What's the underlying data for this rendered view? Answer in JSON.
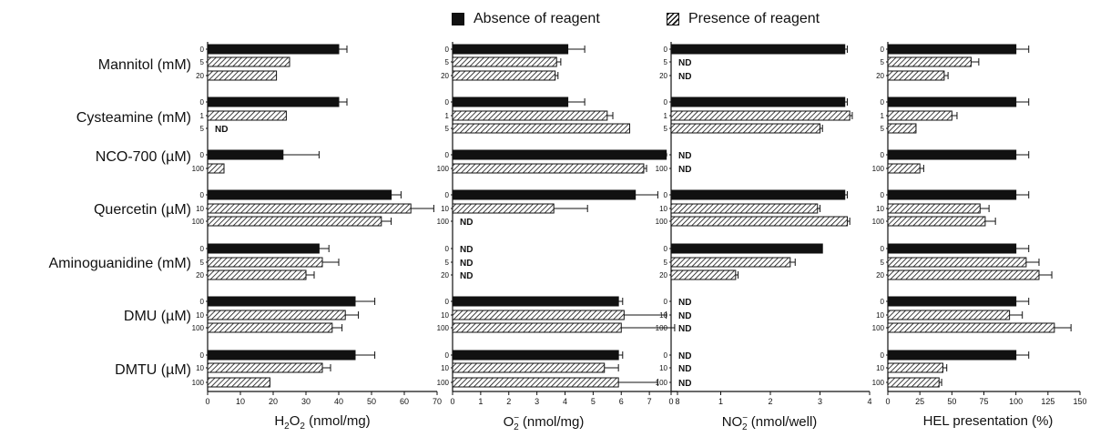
{
  "legend": {
    "absence": "Absence of reagent",
    "presence": "Presence of reagent"
  },
  "colors": {
    "solid": "#111111",
    "hatch": "#111111",
    "background": "#ffffff"
  },
  "nd_label": "ND",
  "panels_meta": [
    {
      "xlabel_main": "H",
      "xlabel_sub": "2",
      "xlabel_mid": "O",
      "xlabel_sub2": "2",
      "xlabel_rest": " (nmol/mg)"
    },
    {
      "xlabel_main": "O",
      "xlabel_sub": "2",
      "xlabel_sup": "−",
      "xlabel_rest": " (nmol/mg)"
    },
    {
      "xlabel_main": "NO",
      "xlabel_sub": "2",
      "xlabel_sup": "−",
      "xlabel_rest": " (nmol/well)"
    },
    {
      "xlabel_main": "HEL presentation (%)"
    }
  ],
  "chart_data": [
    {
      "type": "bar",
      "orientation": "horizontal",
      "xlabel": "H2O2 (nmol/mg)",
      "xlim": [
        0,
        70
      ],
      "ticks": [
        0,
        10,
        20,
        30,
        40,
        50,
        60,
        70
      ],
      "groups": [
        {
          "name": "Mannitol (mM)",
          "rows": [
            {
              "conc": "0",
              "value": 40,
              "err": 2.5
            },
            {
              "conc": "5",
              "value": 25,
              "err": 0
            },
            {
              "conc": "20",
              "value": 21,
              "err": 0
            }
          ]
        },
        {
          "name": "Cysteamine (mM)",
          "rows": [
            {
              "conc": "0",
              "value": 40,
              "err": 2.5
            },
            {
              "conc": "1",
              "value": 24,
              "err": 0
            },
            {
              "conc": "5",
              "value": null,
              "nd": true
            }
          ]
        },
        {
          "name": "NCO-700 (µM)",
          "rows": [
            {
              "conc": "0",
              "value": 23,
              "err": 11
            },
            {
              "conc": "100",
              "value": 5,
              "err": 0
            }
          ]
        },
        {
          "name": "Quercetin (µM)",
          "rows": [
            {
              "conc": "0",
              "value": 56,
              "err": 3
            },
            {
              "conc": "10",
              "value": 62,
              "err": 7
            },
            {
              "conc": "100",
              "value": 53,
              "err": 3
            }
          ]
        },
        {
          "name": "Aminoguanidine (mM)",
          "rows": [
            {
              "conc": "0",
              "value": 34,
              "err": 3
            },
            {
              "conc": "5",
              "value": 35,
              "err": 5
            },
            {
              "conc": "20",
              "value": 30,
              "err": 2.5
            }
          ]
        },
        {
          "name": "DMU (µM)",
          "rows": [
            {
              "conc": "0",
              "value": 45,
              "err": 6
            },
            {
              "conc": "10",
              "value": 42,
              "err": 4
            },
            {
              "conc": "100",
              "value": 38,
              "err": 3
            }
          ]
        },
        {
          "name": "DMTU (µM)",
          "rows": [
            {
              "conc": "0",
              "value": 45,
              "err": 6
            },
            {
              "conc": "10",
              "value": 35,
              "err": 2.5
            },
            {
              "conc": "100",
              "value": 19,
              "err": 0
            }
          ]
        }
      ]
    },
    {
      "type": "bar",
      "orientation": "horizontal",
      "xlabel": "O2− (nmol/mg)",
      "xlim": [
        0,
        8
      ],
      "ticks": [
        0,
        1,
        2,
        3,
        4,
        5,
        6,
        7,
        8
      ],
      "groups": [
        {
          "name": "Mannitol (mM)",
          "rows": [
            {
              "conc": "0",
              "value": 4.1,
              "err": 0.6
            },
            {
              "conc": "5",
              "value": 3.7,
              "err": 0.15
            },
            {
              "conc": "20",
              "value": 3.65,
              "err": 0.1
            }
          ]
        },
        {
          "name": "Cysteamine (mM)",
          "rows": [
            {
              "conc": "0",
              "value": 4.1,
              "err": 0.6
            },
            {
              "conc": "1",
              "value": 5.5,
              "err": 0.2
            },
            {
              "conc": "5",
              "value": 6.3,
              "err": 0
            }
          ]
        },
        {
          "name": "NCO-700 (µM)",
          "rows": [
            {
              "conc": "0",
              "value": 7.6,
              "err": 0
            },
            {
              "conc": "100",
              "value": 6.8,
              "err": 0.1
            }
          ]
        },
        {
          "name": "Quercetin (µM)",
          "rows": [
            {
              "conc": "0",
              "value": 6.5,
              "err": 0.8
            },
            {
              "conc": "10",
              "value": 3.6,
              "err": 1.2
            },
            {
              "conc": "100",
              "value": null,
              "nd": true
            }
          ]
        },
        {
          "name": "Aminoguanidine (mM)",
          "rows": [
            {
              "conc": "0",
              "value": null,
              "nd": true
            },
            {
              "conc": "5",
              "value": null,
              "nd": true
            },
            {
              "conc": "20",
              "value": null,
              "nd": true
            }
          ]
        },
        {
          "name": "DMU (µM)",
          "rows": [
            {
              "conc": "0",
              "value": 5.9,
              "err": 0.15
            },
            {
              "conc": "10",
              "value": 6.1,
              "err": 1.5
            },
            {
              "conc": "100",
              "value": 6.0,
              "err": 1.9
            }
          ]
        },
        {
          "name": "DMTU (µM)",
          "rows": [
            {
              "conc": "0",
              "value": 5.9,
              "err": 0.15
            },
            {
              "conc": "10",
              "value": 5.4,
              "err": 0.5
            },
            {
              "conc": "100",
              "value": 5.9,
              "err": 1.4
            }
          ]
        }
      ]
    },
    {
      "type": "bar",
      "orientation": "horizontal",
      "xlabel": "NO2− (nmol/well)",
      "xlim": [
        0,
        4
      ],
      "ticks": [
        0,
        1,
        2,
        3,
        4
      ],
      "groups": [
        {
          "name": "Mannitol (mM)",
          "rows": [
            {
              "conc": "0",
              "value": 3.5,
              "err": 0.05
            },
            {
              "conc": "5",
              "value": null,
              "nd": true
            },
            {
              "conc": "20",
              "value": null,
              "nd": true
            }
          ]
        },
        {
          "name": "Cysteamine (mM)",
          "rows": [
            {
              "conc": "0",
              "value": 3.5,
              "err": 0.05
            },
            {
              "conc": "1",
              "value": 3.6,
              "err": 0.05
            },
            {
              "conc": "5",
              "value": 3.0,
              "err": 0.05
            }
          ]
        },
        {
          "name": "NCO-700 (µM)",
          "rows": [
            {
              "conc": "0",
              "value": null,
              "nd": true
            },
            {
              "conc": "100",
              "value": null,
              "nd": true
            }
          ]
        },
        {
          "name": "Quercetin (µM)",
          "rows": [
            {
              "conc": "0",
              "value": 3.5,
              "err": 0.05
            },
            {
              "conc": "10",
              "value": 2.95,
              "err": 0.05
            },
            {
              "conc": "100",
              "value": 3.55,
              "err": 0.05
            }
          ]
        },
        {
          "name": "Aminoguanidine (mM)",
          "rows": [
            {
              "conc": "0",
              "value": 3.05,
              "err": 0
            },
            {
              "conc": "5",
              "value": 2.4,
              "err": 0.1
            },
            {
              "conc": "20",
              "value": 1.3,
              "err": 0.05
            }
          ]
        },
        {
          "name": "DMU (µM)",
          "rows": [
            {
              "conc": "0",
              "value": null,
              "nd": true
            },
            {
              "conc": "10",
              "value": null,
              "nd": true
            },
            {
              "conc": "100",
              "value": null,
              "nd": true
            }
          ]
        },
        {
          "name": "DMTU (µM)",
          "rows": [
            {
              "conc": "0",
              "value": null,
              "nd": true
            },
            {
              "conc": "10",
              "value": null,
              "nd": true
            },
            {
              "conc": "100",
              "value": null,
              "nd": true
            }
          ]
        }
      ]
    },
    {
      "type": "bar",
      "orientation": "horizontal",
      "xlabel": "HEL presentation (%)",
      "xlim": [
        0,
        150
      ],
      "ticks": [
        0,
        25,
        50,
        75,
        100,
        125,
        150
      ],
      "groups": [
        {
          "name": "Mannitol (mM)",
          "rows": [
            {
              "conc": "0",
              "value": 100,
              "err": 10
            },
            {
              "conc": "5",
              "value": 65,
              "err": 6
            },
            {
              "conc": "20",
              "value": 44,
              "err": 3
            }
          ]
        },
        {
          "name": "Cysteamine (mM)",
          "rows": [
            {
              "conc": "0",
              "value": 100,
              "err": 10
            },
            {
              "conc": "1",
              "value": 50,
              "err": 4
            },
            {
              "conc": "5",
              "value": 22,
              "err": 0
            }
          ]
        },
        {
          "name": "NCO-700 (µM)",
          "rows": [
            {
              "conc": "0",
              "value": 100,
              "err": 10
            },
            {
              "conc": "100",
              "value": 25,
              "err": 3
            }
          ]
        },
        {
          "name": "Quercetin (µM)",
          "rows": [
            {
              "conc": "0",
              "value": 100,
              "err": 10
            },
            {
              "conc": "10",
              "value": 72,
              "err": 7
            },
            {
              "conc": "100",
              "value": 76,
              "err": 8
            }
          ]
        },
        {
          "name": "Aminoguanidine (mM)",
          "rows": [
            {
              "conc": "0",
              "value": 100,
              "err": 10
            },
            {
              "conc": "5",
              "value": 108,
              "err": 10
            },
            {
              "conc": "20",
              "value": 118,
              "err": 10
            }
          ]
        },
        {
          "name": "DMU (µM)",
          "rows": [
            {
              "conc": "0",
              "value": 100,
              "err": 10
            },
            {
              "conc": "10",
              "value": 95,
              "err": 10
            },
            {
              "conc": "100",
              "value": 130,
              "err": 13
            }
          ]
        },
        {
          "name": "DMTU (µM)",
          "rows": [
            {
              "conc": "0",
              "value": 100,
              "err": 10
            },
            {
              "conc": "10",
              "value": 43,
              "err": 3
            },
            {
              "conc": "100",
              "value": 40,
              "err": 2
            }
          ]
        }
      ]
    }
  ]
}
